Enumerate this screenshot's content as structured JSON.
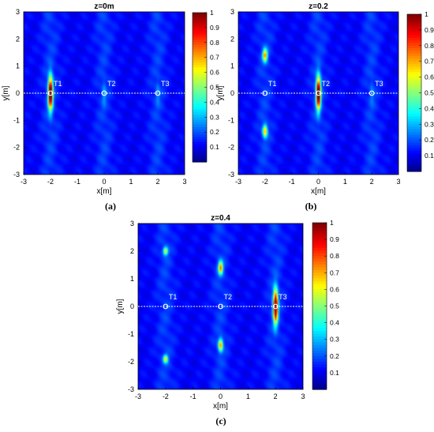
{
  "chart_data": [
    {
      "type": "heatmap",
      "title": "z=0m",
      "caption": "(a)",
      "xlabel": "x[m]",
      "ylabel": "y[m]",
      "xlim": [
        -3,
        3
      ],
      "ylim": [
        -3,
        3
      ],
      "x_ticks": [
        "-3",
        "-2",
        "-1",
        "0",
        "1",
        "2",
        "3"
      ],
      "y_ticks": [
        "3",
        "2",
        "1",
        "0",
        "-1",
        "-2",
        "-3"
      ],
      "colorbar_ticks": [
        "1",
        "0.9",
        "0.8",
        "0.7",
        "0.6",
        "0.5",
        "0.4",
        "0.3",
        "0.2",
        "0.1"
      ],
      "colorbar_range": [
        0,
        1
      ],
      "scan_line_y": 0,
      "targets": [
        {
          "label": "T1",
          "x": -2,
          "y": 0
        },
        {
          "label": "T2",
          "x": 0,
          "y": 0
        },
        {
          "label": "T3",
          "x": 2,
          "y": 0
        }
      ],
      "peaks": [
        {
          "x": -2,
          "y": 0,
          "intensity": 1.0,
          "sx": 0.06,
          "sy": 0.42
        },
        {
          "x": 0,
          "y": 0,
          "intensity": 0.12,
          "sx": 0.05,
          "sy": 0.3
        },
        {
          "x": 2,
          "y": 0,
          "intensity": 0.1,
          "sx": 0.05,
          "sy": 0.3
        }
      ],
      "stripes": [
        -2,
        0,
        2
      ]
    },
    {
      "type": "heatmap",
      "title": "z=0.2",
      "caption": "(b)",
      "xlabel": "x[m]",
      "ylabel": "y[m]",
      "xlim": [
        -3,
        3
      ],
      "ylim": [
        -3,
        3
      ],
      "x_ticks": [
        "-3",
        "-2",
        "-1",
        "0",
        "1",
        "2",
        "3"
      ],
      "y_ticks": [
        "3",
        "2",
        "1",
        "0",
        "-1",
        "-2",
        "-3"
      ],
      "colorbar_ticks": [
        "1",
        "0.9",
        "0.8",
        "0.7",
        "0.6",
        "0.5",
        "0.4",
        "0.3",
        "0.2",
        "0.1"
      ],
      "colorbar_range": [
        0,
        1
      ],
      "scan_line_y": 0,
      "targets": [
        {
          "label": "T1",
          "x": -2,
          "y": 0
        },
        {
          "label": "T2",
          "x": 0,
          "y": 0
        },
        {
          "label": "T3",
          "x": 2,
          "y": 0
        }
      ],
      "peaks": [
        {
          "x": 0,
          "y": 0,
          "intensity": 1.0,
          "sx": 0.06,
          "sy": 0.42
        },
        {
          "x": -2,
          "y": 1.4,
          "intensity": 0.6,
          "sx": 0.06,
          "sy": 0.16
        },
        {
          "x": -2,
          "y": -1.4,
          "intensity": 0.55,
          "sx": 0.06,
          "sy": 0.16
        },
        {
          "x": 2,
          "y": 0,
          "intensity": 0.08,
          "sx": 0.05,
          "sy": 0.3
        }
      ],
      "stripes": [
        -2,
        0,
        2
      ]
    },
    {
      "type": "heatmap",
      "title": "z=0.4",
      "caption": "(c)",
      "xlabel": "x[m]",
      "ylabel": "y[m]",
      "xlim": [
        -3,
        3
      ],
      "ylim": [
        -3,
        3
      ],
      "x_ticks": [
        "-3",
        "-2",
        "-1",
        "0",
        "1",
        "2",
        "3"
      ],
      "y_ticks": [
        "3",
        "2",
        "1",
        "0",
        "-1",
        "-2",
        "-3"
      ],
      "colorbar_ticks": [
        "1",
        "0.9",
        "0.8",
        "0.7",
        "0.6",
        "0.5",
        "0.4",
        "0.3",
        "0.2",
        "0.1"
      ],
      "colorbar_range": [
        0,
        1
      ],
      "scan_line_y": 0,
      "targets": [
        {
          "label": "T1",
          "x": -2,
          "y": 0
        },
        {
          "label": "T2",
          "x": 0,
          "y": 0
        },
        {
          "label": "T3",
          "x": 2,
          "y": 0
        }
      ],
      "peaks": [
        {
          "x": 2,
          "y": 0,
          "intensity": 1.0,
          "sx": 0.06,
          "sy": 0.42
        },
        {
          "x": 0,
          "y": 1.4,
          "intensity": 0.6,
          "sx": 0.06,
          "sy": 0.16
        },
        {
          "x": 0,
          "y": -1.4,
          "intensity": 0.55,
          "sx": 0.06,
          "sy": 0.16
        },
        {
          "x": -2,
          "y": 2.0,
          "intensity": 0.45,
          "sx": 0.06,
          "sy": 0.1
        },
        {
          "x": -2,
          "y": -1.9,
          "intensity": 0.45,
          "sx": 0.06,
          "sy": 0.1
        }
      ],
      "stripes": [
        -2,
        0,
        2
      ]
    }
  ]
}
